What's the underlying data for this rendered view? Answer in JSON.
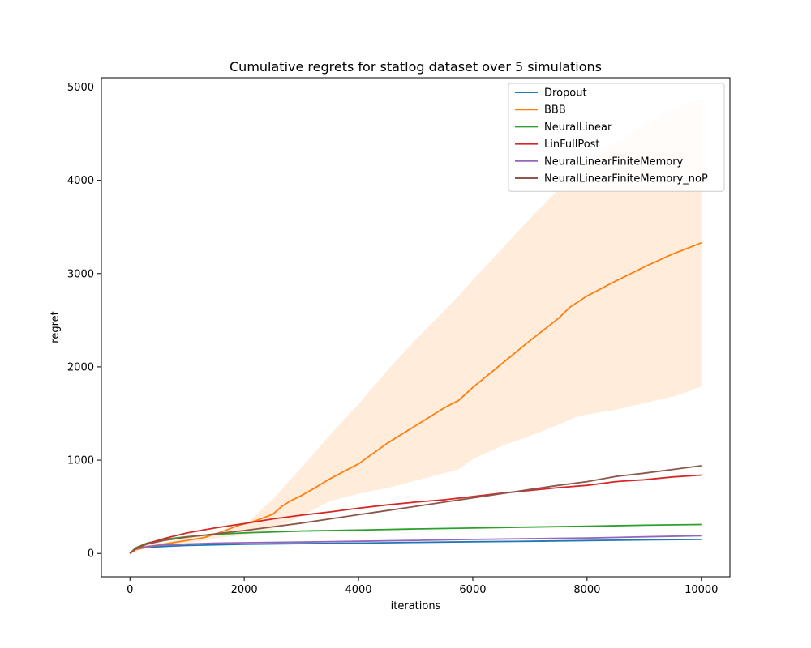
{
  "chart_data": {
    "type": "line",
    "title": "Cumulative regrets for statlog dataset over 5 simulations",
    "xlabel": "iterations",
    "ylabel": "regret",
    "xlim": [
      -500,
      10500
    ],
    "ylim": [
      -250,
      5100
    ],
    "xticks": [
      0,
      2000,
      4000,
      6000,
      8000,
      10000
    ],
    "yticks": [
      0,
      1000,
      2000,
      3000,
      4000,
      5000
    ],
    "grid": false,
    "legend_position": "upper right",
    "series": [
      {
        "name": "Dropout",
        "color": "#1f77b4",
        "x": [
          0,
          100,
          300,
          600,
          1000,
          1500,
          2000,
          3000,
          4000,
          5000,
          6000,
          7000,
          8000,
          9000,
          10000
        ],
        "y": [
          0,
          45,
          65,
          75,
          85,
          92,
          98,
          105,
          110,
          118,
          125,
          130,
          138,
          145,
          150
        ]
      },
      {
        "name": "BBB",
        "color": "#ff7f0e",
        "x": [
          0,
          100,
          300,
          600,
          1000,
          1300,
          1600,
          1900,
          2200,
          2500,
          2650,
          2800,
          3000,
          3200,
          3500,
          4000,
          4500,
          5000,
          5500,
          5750,
          6000,
          6500,
          7000,
          7500,
          7700,
          8000,
          8500,
          9000,
          9500,
          10000
        ],
        "y": [
          0,
          40,
          70,
          100,
          140,
          170,
          230,
          300,
          350,
          420,
          500,
          560,
          620,
          690,
          800,
          960,
          1180,
          1370,
          1560,
          1640,
          1780,
          2030,
          2280,
          2520,
          2640,
          2760,
          2920,
          3070,
          3210,
          3330
        ]
      },
      {
        "name": "NeuralLinear",
        "color": "#2ca02c",
        "x": [
          0,
          100,
          300,
          600,
          1000,
          1500,
          2000,
          3000,
          4000,
          5000,
          6000,
          7000,
          8000,
          9000,
          10000
        ],
        "y": [
          0,
          60,
          110,
          150,
          180,
          205,
          220,
          240,
          250,
          262,
          272,
          282,
          292,
          302,
          310
        ]
      },
      {
        "name": "LinFullPost",
        "color": "#d62728",
        "x": [
          0,
          100,
          300,
          600,
          1000,
          1500,
          2000,
          2500,
          3000,
          3500,
          4000,
          4500,
          5000,
          5500,
          6000,
          6500,
          7000,
          7500,
          8000,
          8500,
          9000,
          9500,
          10000
        ],
        "y": [
          0,
          55,
          105,
          160,
          220,
          275,
          320,
          370,
          410,
          445,
          485,
          520,
          550,
          575,
          610,
          645,
          675,
          705,
          730,
          770,
          790,
          820,
          840
        ]
      },
      {
        "name": "NeuralLinearFiniteMemory",
        "color": "#9467bd",
        "x": [
          0,
          100,
          300,
          600,
          1000,
          1500,
          2000,
          3000,
          4000,
          5000,
          6000,
          7000,
          8000,
          9000,
          10000
        ],
        "y": [
          0,
          50,
          75,
          90,
          100,
          110,
          115,
          122,
          130,
          140,
          150,
          158,
          165,
          178,
          190
        ]
      },
      {
        "name": "NeuralLinearFiniteMemory_noP",
        "color": "#8c564b",
        "x": [
          0,
          100,
          300,
          600,
          1000,
          1500,
          2000,
          2500,
          3000,
          3500,
          4000,
          4500,
          5000,
          5500,
          6000,
          6500,
          7000,
          7500,
          8000,
          8500,
          9000,
          9500,
          10000
        ],
        "y": [
          0,
          50,
          100,
          140,
          175,
          210,
          245,
          285,
          325,
          370,
          415,
          460,
          505,
          550,
          595,
          640,
          685,
          730,
          770,
          825,
          860,
          900,
          940
        ]
      }
    ],
    "bands": [
      {
        "series": "BBB",
        "color": "#ff7f0e",
        "opacity": 0.15,
        "x": [
          0,
          300,
          600,
          1000,
          1500,
          2000,
          2500,
          3000,
          3500,
          4000,
          4500,
          5000,
          5500,
          5750,
          6000,
          6500,
          7000,
          7500,
          7800,
          8000,
          8500,
          9000,
          9500,
          9700,
          10000
        ],
        "lower": [
          0,
          60,
          85,
          110,
          160,
          200,
          260,
          400,
          560,
          640,
          700,
          780,
          860,
          900,
          1010,
          1150,
          1260,
          1380,
          1460,
          1490,
          1540,
          1610,
          1680,
          1720,
          1790
        ],
        "upper": [
          0,
          90,
          120,
          165,
          210,
          300,
          580,
          920,
          1270,
          1600,
          1960,
          2290,
          2600,
          2760,
          2930,
          3260,
          3590,
          3900,
          4050,
          4200,
          4400,
          4600,
          4780,
          4820,
          4860
        ]
      }
    ]
  }
}
